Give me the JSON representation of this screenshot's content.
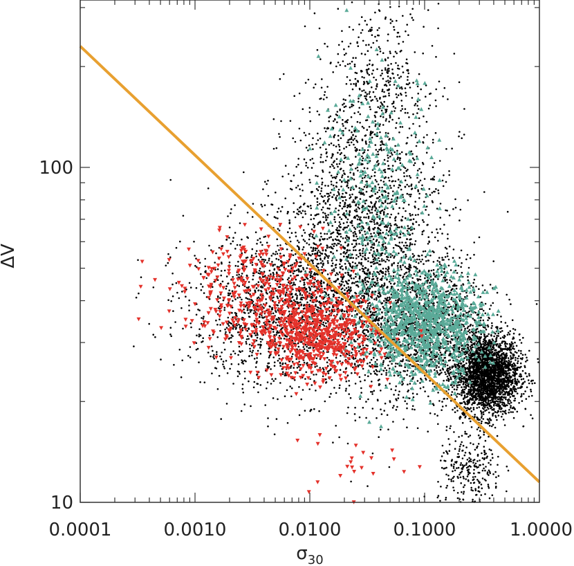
{
  "chart_data": {
    "type": "scatter",
    "xlabel": "σ30",
    "xlabel_parts": {
      "base": "σ",
      "sub": "30"
    },
    "ylabel": "ΔV",
    "x_scale": "log",
    "y_scale": "log",
    "xlim": [
      0.0001,
      1.0
    ],
    "ylim": [
      10,
      316
    ],
    "x_ticks": [
      {
        "value": 0.0001,
        "label": "0.0001"
      },
      {
        "value": 0.001,
        "label": "0.0010"
      },
      {
        "value": 0.01,
        "label": "0.0100"
      },
      {
        "value": 0.1,
        "label": "0.1000"
      },
      {
        "value": 1.0,
        "label": "1.0000"
      }
    ],
    "y_ticks": [
      {
        "value": 10,
        "label": "10"
      },
      {
        "value": 100,
        "label": "100"
      }
    ],
    "grid": false,
    "legend": "none",
    "series": [
      {
        "marker": "dot",
        "color": "#000000",
        "clusters": [
          {
            "x": 0.35,
            "y": 24,
            "sx": 0.14,
            "sy": 0.06,
            "n": 2600
          },
          {
            "x": 0.03,
            "y": 62,
            "sx": 0.35,
            "sy": 0.22,
            "n": 2200
          },
          {
            "x": 0.006,
            "y": 38,
            "sx": 0.42,
            "sy": 0.12,
            "n": 1600
          },
          {
            "x": 0.1,
            "y": 33,
            "sx": 0.3,
            "sy": 0.1,
            "n": 1500
          },
          {
            "x": 0.25,
            "y": 12,
            "sx": 0.14,
            "sy": 0.07,
            "n": 280
          },
          {
            "x": 0.04,
            "y": 190,
            "sx": 0.22,
            "sy": 0.1,
            "n": 300
          }
        ]
      },
      {
        "marker": "triangle-up",
        "color": "#5aaa98",
        "clusters": [
          {
            "x": 0.1,
            "y": 34,
            "sx": 0.25,
            "sy": 0.08,
            "n": 950
          },
          {
            "x": 0.04,
            "y": 80,
            "sx": 0.25,
            "sy": 0.2,
            "n": 260
          }
        ]
      },
      {
        "marker": "triangle-down",
        "color": "#e4322b",
        "clusters": [
          {
            "x": 0.012,
            "y": 31,
            "sx": 0.25,
            "sy": 0.06,
            "n": 580
          },
          {
            "x": 0.004,
            "y": 42,
            "sx": 0.35,
            "sy": 0.08,
            "n": 380
          },
          {
            "x": 0.02,
            "y": 13,
            "sx": 0.25,
            "sy": 0.08,
            "n": 25
          }
        ]
      }
    ],
    "reference_line": {
      "color": "#e8a030",
      "points": [
        {
          "x": 0.0001,
          "y": 230
        },
        {
          "x": 1.0,
          "y": 11.5
        }
      ]
    }
  }
}
